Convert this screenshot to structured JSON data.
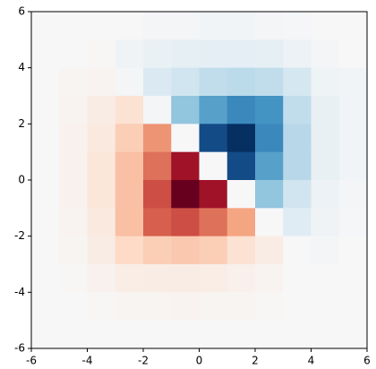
{
  "chart_data": {
    "type": "heatmap",
    "xlim": [
      -6,
      6
    ],
    "ylim": [
      -6,
      6
    ],
    "xticks": [
      -6,
      -4,
      -2,
      0,
      2,
      4,
      6
    ],
    "yticks": [
      -6,
      -4,
      -2,
      0,
      2,
      4,
      6
    ],
    "zlim": [
      -1,
      1
    ],
    "colormap": [
      "#67001f",
      "#b2182b",
      "#d6604d",
      "#f4a582",
      "#fddbc7",
      "#f7f7f7",
      "#d1e5f0",
      "#92c5de",
      "#4393c3",
      "#2166ac",
      "#053061"
    ],
    "z": [
      [
        0,
        0,
        0,
        0,
        0.02,
        0.02,
        0.03,
        0.03,
        0.02,
        0.01,
        0,
        0
      ],
      [
        0,
        0,
        -0.01,
        0.04,
        0.07,
        0.09,
        0.1,
        0.1,
        0.09,
        0.06,
        0.02,
        0
      ],
      [
        0,
        -0.02,
        -0.03,
        0.02,
        0.15,
        0.2,
        0.25,
        0.27,
        0.25,
        0.18,
        0.05,
        0.03
      ],
      [
        0,
        -0.03,
        -0.08,
        -0.15,
        0.02,
        0.4,
        0.55,
        0.65,
        0.6,
        0.25,
        0.08,
        0.03
      ],
      [
        0,
        -0.04,
        -0.1,
        -0.25,
        -0.45,
        0,
        0.9,
        1.0,
        0.65,
        0.28,
        0.08,
        0.03
      ],
      [
        0,
        -0.04,
        -0.12,
        -0.3,
        -0.55,
        -0.85,
        0,
        0.9,
        0.55,
        0.28,
        0.08,
        0.03
      ],
      [
        0,
        -0.04,
        -0.12,
        -0.3,
        -0.65,
        -1.0,
        -0.85,
        0,
        0.4,
        0.2,
        0.06,
        0.02
      ],
      [
        0,
        -0.03,
        -0.1,
        -0.3,
        -0.6,
        -0.65,
        -0.55,
        -0.4,
        0,
        0.12,
        0.04,
        0.01
      ],
      [
        0,
        -0.02,
        -0.08,
        -0.2,
        -0.25,
        -0.27,
        -0.25,
        -0.15,
        -0.08,
        0,
        0.02,
        0
      ],
      [
        0,
        -0.01,
        -0.04,
        -0.07,
        -0.08,
        -0.08,
        -0.07,
        -0.05,
        -0.03,
        0,
        0,
        0
      ],
      [
        0,
        0,
        -0.01,
        -0.02,
        -0.02,
        -0.03,
        -0.02,
        -0.02,
        -0.01,
        0,
        0,
        0
      ],
      [
        0,
        0,
        0,
        0,
        0,
        0,
        0,
        0,
        0,
        0,
        0,
        0
      ]
    ]
  }
}
